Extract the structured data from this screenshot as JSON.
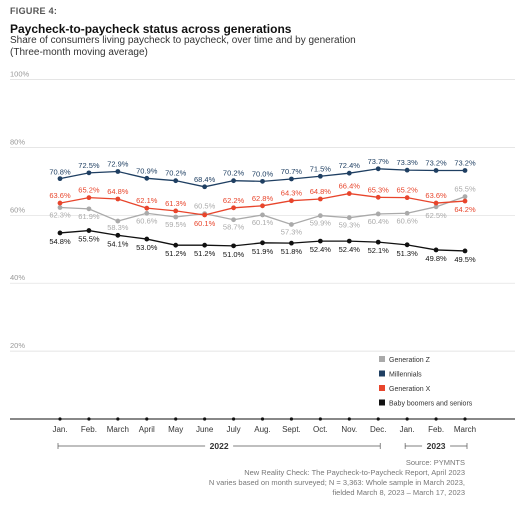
{
  "figure_label": "FIGURE 4:",
  "title": "Paycheck-to-paycheck status across generations",
  "subtitle_line1": "Share of consumers living paycheck to paycheck, over time and by generation",
  "subtitle_line2": "(Three-month moving average)",
  "source": {
    "line1": "Source: PYMNTS",
    "line2": "New Reality Check: The Paycheck-to-Paycheck Report, April 2023",
    "line3": "N varies based on month surveyed; N = 3,363: Whole sample in March 2023,",
    "line4": "fielded March 8, 2023 – March 17, 2023"
  },
  "chart_data": {
    "type": "line",
    "categories": [
      "Jan.",
      "Feb.",
      "March",
      "April",
      "May",
      "June",
      "July",
      "Aug.",
      "Sept.",
      "Oct.",
      "Nov.",
      "Dec.",
      "Jan.",
      "Feb.",
      "March"
    ],
    "year_groups": [
      {
        "label": "2022",
        "start": 0,
        "end": 11
      },
      {
        "label": "2023",
        "start": 12,
        "end": 14
      }
    ],
    "ylim": [
      0,
      100
    ],
    "yticks": [
      20,
      40,
      60,
      80,
      100
    ],
    "ytick_labels": [
      "20%",
      "40%",
      "60%",
      "80%",
      "100%"
    ],
    "grid": true,
    "legend_position": "bottom-right",
    "series": [
      {
        "name": "Generation Z",
        "color": "#aaaaaa",
        "values": [
          62.3,
          61.9,
          58.3,
          60.6,
          59.5,
          60.5,
          58.7,
          60.1,
          57.3,
          59.9,
          59.3,
          60.4,
          60.6,
          62.5,
          65.5
        ],
        "labels": [
          "62.3%",
          "61.9%",
          "58.3%",
          "60.6%",
          "59.5%",
          "60.5%",
          "58.7%",
          "60.1%",
          "57.3%",
          "59.9%",
          "59.3%",
          "60.4%",
          "60.6%",
          "62.5%",
          "65.5%"
        ]
      },
      {
        "name": "Millennials",
        "color": "#1f3f62",
        "values": [
          70.8,
          72.5,
          72.9,
          70.9,
          70.2,
          68.4,
          70.2,
          70.0,
          70.7,
          71.5,
          72.4,
          73.7,
          73.3,
          73.2,
          73.2
        ],
        "labels": [
          "70.8%",
          "72.5%",
          "72.9%",
          "70.9%",
          "70.2%",
          "68.4%",
          "70.2%",
          "70.0%",
          "70.7%",
          "71.5%",
          "72.4%",
          "73.7%",
          "73.3%",
          "73.2%",
          "73.2%"
        ]
      },
      {
        "name": "Generation X",
        "color": "#e8452c",
        "values": [
          63.6,
          65.2,
          64.8,
          62.1,
          61.3,
          60.1,
          62.2,
          62.8,
          64.3,
          64.8,
          66.4,
          65.3,
          65.2,
          63.6,
          64.2
        ],
        "labels": [
          "63.6%",
          "65.2%",
          "64.8%",
          "62.1%",
          "61.3%",
          "60.1%",
          "62.2%",
          "62.8%",
          "64.3%",
          "64.8%",
          "66.4%",
          "65.3%",
          "65.2%",
          "63.6%",
          "64.2%"
        ]
      },
      {
        "name": "Baby boomers and seniors",
        "color": "#111111",
        "values": [
          54.8,
          55.5,
          54.1,
          53.0,
          51.2,
          51.2,
          51.0,
          51.9,
          51.8,
          52.4,
          52.4,
          52.1,
          51.3,
          49.8,
          49.5
        ],
        "labels": [
          "54.8%",
          "55.5%",
          "54.1%",
          "53.0%",
          "51.2%",
          "51.2%",
          "51.0%",
          "51.9%",
          "51.8%",
          "52.4%",
          "52.4%",
          "52.1%",
          "51.3%",
          "49.8%",
          "49.5%"
        ]
      }
    ]
  }
}
